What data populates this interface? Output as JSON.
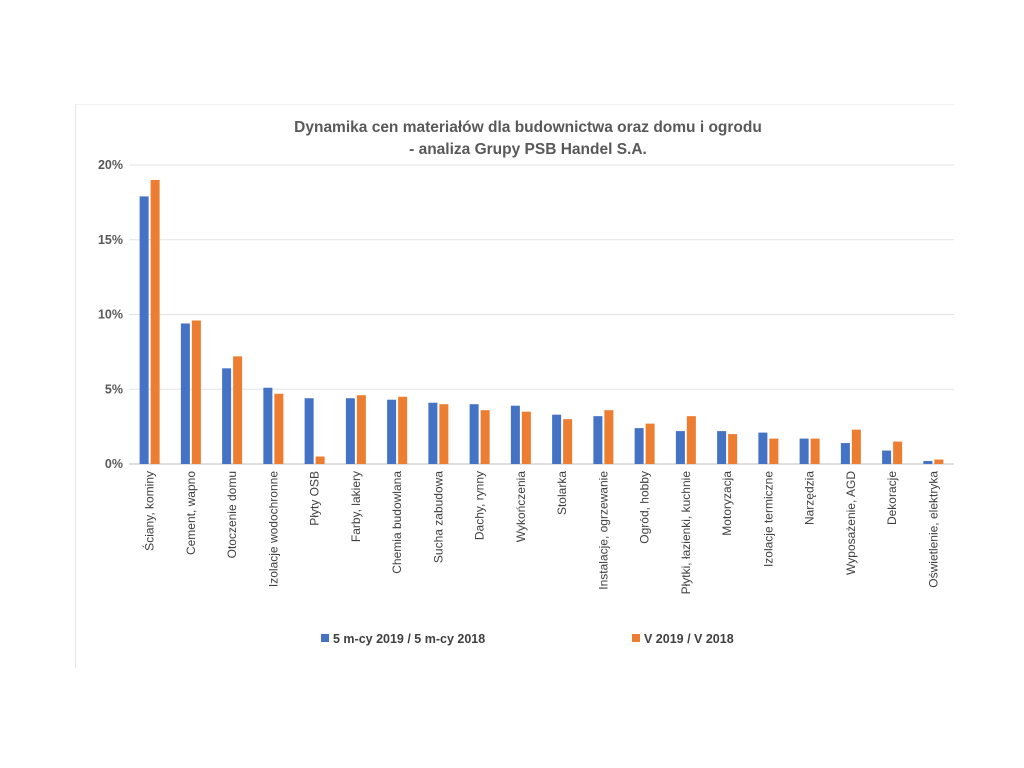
{
  "chart_data": {
    "type": "bar",
    "title": [
      "Dynamika cen materiałów dla budownictwa oraz domu i ogrodu",
      "- analiza Grupy PSB Handel S.A."
    ],
    "categories": [
      "Ściany, kominy",
      "Cement, wapno",
      "Otoczenie domu",
      "Izolacje wodochronne",
      "Płyty OSB",
      "Farby, lakiery",
      "Chemia budowlana",
      "Sucha zabudowa",
      "Dachy, rynny",
      "Wykończenia",
      "Stolarka",
      "Instalacje, ogrzewanie",
      "Ogród, hobby",
      "Płytki, łazienki, kuchnie",
      "Motoryzacja",
      "Izolacje termiczne",
      "Narzędzia",
      "Wyposażenie, AGD",
      "Dekoracje",
      "Oświetlenie, elektryka"
    ],
    "series": [
      {
        "name": "5 m-cy 2019 / 5 m-cy 2018",
        "color": "#4472C4",
        "values": [
          17.9,
          9.4,
          6.4,
          5.1,
          4.4,
          4.4,
          4.3,
          4.1,
          4.0,
          3.9,
          3.3,
          3.2,
          2.4,
          2.2,
          2.2,
          2.1,
          1.7,
          1.4,
          0.9,
          0.2
        ]
      },
      {
        "name": "V 2019 / V 2018",
        "color": "#ED7D31",
        "values": [
          19.0,
          9.6,
          7.2,
          4.7,
          0.5,
          4.6,
          4.5,
          4.0,
          3.6,
          3.5,
          3.0,
          3.6,
          2.7,
          3.2,
          2.0,
          1.7,
          1.7,
          2.3,
          1.5,
          0.3
        ]
      }
    ],
    "yticks": [
      "0%",
      "5%",
      "10%",
      "15%",
      "20%"
    ],
    "ylim": [
      0,
      20
    ],
    "grid": true,
    "legend": "bottom"
  }
}
